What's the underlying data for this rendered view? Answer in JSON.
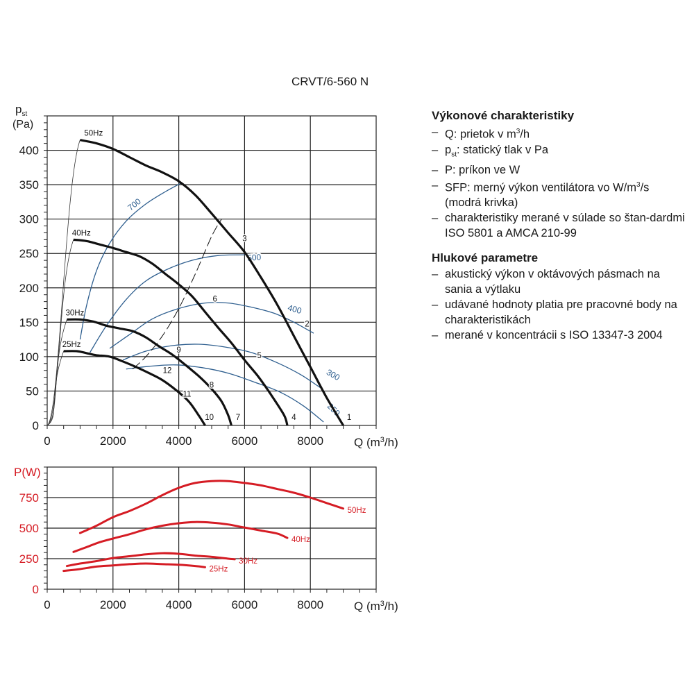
{
  "title": "CRVT/6-560 N",
  "description": {
    "sections": [
      {
        "heading": "Výkonové charakteristiky",
        "items": [
          "Q: prietok v m³/h",
          "pst: statický tlak v Pa",
          "P: príkon ve W",
          "SFP: merný výkon ventilátora vo W/m³/s (modrá krivka)",
          "charakteristiky merané v súlade so štandardmi ISO 5801 a AMCA 210-99"
        ]
      },
      {
        "heading": "Hlukové parametre",
        "items": [
          "akustický výkon v oktávových pásmach na sania a výtlaku",
          "udávané hodnoty platia pre pracovné body na charakteristikách",
          "merané v koncentrácii s ISO 13347-3 2004"
        ]
      }
    ]
  },
  "colors": {
    "fan_curve": "#111111",
    "sfp_curve": "#2f5f8f",
    "power_curve": "#d51c24",
    "grid": "#222222",
    "axis_red": "#d51c24"
  },
  "chart_data": [
    {
      "type": "line",
      "title": "",
      "xlabel": "Q (m³/h)",
      "ylabel": "pst (Pa)",
      "xlim": [
        0,
        10000
      ],
      "ylim": [
        0,
        450
      ],
      "xticks": [
        0,
        2000,
        4000,
        6000,
        8000
      ],
      "yticks": [
        0,
        50,
        100,
        150,
        200,
        250,
        300,
        350,
        400
      ],
      "grid": true,
      "series": [
        {
          "name": "50Hz",
          "kind": "fan",
          "points": [
            [
              1000,
              415
            ],
            [
              1500,
              410
            ],
            [
              2000,
              402
            ],
            [
              2500,
              390
            ],
            [
              3000,
              378
            ],
            [
              3500,
              368
            ],
            [
              4000,
              355
            ],
            [
              4500,
              335
            ],
            [
              5000,
              308
            ],
            [
              5500,
              280
            ],
            [
              6000,
              252
            ],
            [
              6500,
              215
            ],
            [
              7000,
              175
            ],
            [
              7500,
              130
            ],
            [
              8000,
              85
            ],
            [
              8500,
              40
            ],
            [
              9000,
              0
            ]
          ]
        },
        {
          "name": "40Hz",
          "kind": "fan",
          "points": [
            [
              800,
              270
            ],
            [
              1200,
              268
            ],
            [
              1600,
              263
            ],
            [
              2000,
              258
            ],
            [
              2400,
              252
            ],
            [
              2800,
              246
            ],
            [
              3200,
              235
            ],
            [
              3600,
              220
            ],
            [
              4000,
              205
            ],
            [
              4400,
              188
            ],
            [
              4800,
              165
            ],
            [
              5200,
              142
            ],
            [
              5600,
              120
            ],
            [
              6000,
              95
            ],
            [
              6400,
              72
            ],
            [
              6800,
              45
            ],
            [
              7200,
              15
            ],
            [
              7300,
              0
            ]
          ]
        },
        {
          "name": "30Hz",
          "kind": "fan",
          "points": [
            [
              600,
              154
            ],
            [
              1000,
              154
            ],
            [
              1400,
              151
            ],
            [
              1800,
              145
            ],
            [
              2200,
              141
            ],
            [
              2600,
              137
            ],
            [
              3000,
              128
            ],
            [
              3400,
              115
            ],
            [
              3800,
              103
            ],
            [
              4200,
              88
            ],
            [
              4600,
              72
            ],
            [
              5000,
              53
            ],
            [
              5300,
              35
            ],
            [
              5500,
              15
            ],
            [
              5600,
              0
            ]
          ]
        },
        {
          "name": "25Hz",
          "kind": "fan",
          "points": [
            [
              500,
              108
            ],
            [
              900,
              108
            ],
            [
              1200,
              105
            ],
            [
              1500,
              102
            ],
            [
              1900,
              100
            ],
            [
              2300,
              93
            ],
            [
              2700,
              85
            ],
            [
              3100,
              76
            ],
            [
              3500,
              66
            ],
            [
              3900,
              52
            ],
            [
              4300,
              35
            ],
            [
              4600,
              15
            ],
            [
              4800,
              0
            ]
          ]
        },
        {
          "name": "700",
          "kind": "sfp",
          "points": [
            [
              1000,
              125
            ],
            [
              1200,
              175
            ],
            [
              1500,
              225
            ],
            [
              1900,
              265
            ],
            [
              2400,
              297
            ],
            [
              3000,
              322
            ],
            [
              3600,
              340
            ],
            [
              4100,
              353
            ]
          ]
        },
        {
          "name": "500",
          "kind": "sfp",
          "points": [
            [
              1300,
              106
            ],
            [
              1800,
              145
            ],
            [
              2400,
              183
            ],
            [
              3000,
              210
            ],
            [
              3700,
              228
            ],
            [
              4400,
              240
            ],
            [
              5200,
              247
            ],
            [
              6000,
              248
            ]
          ]
        },
        {
          "name": "400",
          "kind": "sfp",
          "points": [
            [
              1900,
              112
            ],
            [
              2500,
              132
            ],
            [
              3200,
              155
            ],
            [
              4000,
              170
            ],
            [
              4800,
              178
            ],
            [
              5500,
              178
            ],
            [
              6200,
              172
            ],
            [
              6900,
              163
            ],
            [
              7500,
              150
            ],
            [
              8100,
              134
            ]
          ]
        },
        {
          "name": "300",
          "kind": "sfp",
          "points": [
            [
              2300,
              95
            ],
            [
              3000,
              108
            ],
            [
              3800,
              116
            ],
            [
              4600,
              118
            ],
            [
              5400,
              114
            ],
            [
              6200,
              106
            ],
            [
              7000,
              91
            ],
            [
              7700,
              74
            ],
            [
              8300,
              55
            ]
          ]
        },
        {
          "name": "250",
          "kind": "sfp",
          "points": [
            [
              2400,
              82
            ],
            [
              3100,
              86
            ],
            [
              3900,
              88
            ],
            [
              4700,
              84
            ],
            [
              5500,
              76
            ],
            [
              6300,
              63
            ],
            [
              7100,
              48
            ],
            [
              7800,
              28
            ],
            [
              8400,
              5
            ]
          ]
        }
      ],
      "system_lines": [
        {
          "points": [
            [
              2600,
              82
            ],
            [
              3000,
              100
            ],
            [
              3500,
              130
            ],
            [
              4000,
              170
            ],
            [
              4500,
              220
            ],
            [
              5000,
              275
            ],
            [
              5300,
              300
            ]
          ],
          "dashed": true
        }
      ],
      "point_labels": [
        {
          "text": "1",
          "at": [
            9180,
            8
          ]
        },
        {
          "text": "2",
          "at": [
            7900,
            144
          ]
        },
        {
          "text": "3",
          "at": [
            6000,
            268
          ]
        },
        {
          "text": "4",
          "at": [
            7500,
            8
          ]
        },
        {
          "text": "5",
          "at": [
            6450,
            98
          ]
        },
        {
          "text": "6",
          "at": [
            5100,
            180
          ]
        },
        {
          "text": "7",
          "at": [
            5800,
            8
          ]
        },
        {
          "text": "8",
          "at": [
            5000,
            55
          ]
        },
        {
          "text": "9",
          "at": [
            4000,
            106
          ]
        },
        {
          "text": "10",
          "at": [
            4930,
            8
          ]
        },
        {
          "text": "11",
          "at": [
            4250,
            42
          ]
        },
        {
          "text": "12",
          "at": [
            3650,
            76
          ]
        }
      ]
    },
    {
      "type": "line",
      "title": "",
      "xlabel": "Q (m³/h)",
      "ylabel": "P(W)",
      "xlim": [
        0,
        10000
      ],
      "ylim": [
        0,
        1000
      ],
      "xticks": [
        0,
        2000,
        4000,
        6000,
        8000
      ],
      "yticks": [
        0,
        250,
        500,
        750
      ],
      "grid": true,
      "series": [
        {
          "name": "50Hz",
          "points": [
            [
              1000,
              460
            ],
            [
              1500,
              520
            ],
            [
              2000,
              590
            ],
            [
              2500,
              640
            ],
            [
              3000,
              700
            ],
            [
              3500,
              770
            ],
            [
              4000,
              830
            ],
            [
              4500,
              870
            ],
            [
              5000,
              885
            ],
            [
              5500,
              885
            ],
            [
              6000,
              870
            ],
            [
              6500,
              850
            ],
            [
              7000,
              820
            ],
            [
              7500,
              790
            ],
            [
              8000,
              750
            ],
            [
              8500,
              705
            ],
            [
              9000,
              660
            ]
          ]
        },
        {
          "name": "40Hz",
          "points": [
            [
              800,
              305
            ],
            [
              1200,
              345
            ],
            [
              1600,
              385
            ],
            [
              2000,
              415
            ],
            [
              2500,
              450
            ],
            [
              3000,
              490
            ],
            [
              3500,
              520
            ],
            [
              4000,
              540
            ],
            [
              4500,
              550
            ],
            [
              5000,
              545
            ],
            [
              5500,
              530
            ],
            [
              6000,
              505
            ],
            [
              6500,
              480
            ],
            [
              7000,
              455
            ],
            [
              7300,
              420
            ]
          ]
        },
        {
          "name": "30Hz",
          "points": [
            [
              600,
              190
            ],
            [
              1000,
              210
            ],
            [
              1500,
              230
            ],
            [
              2000,
              255
            ],
            [
              2500,
              270
            ],
            [
              3000,
              285
            ],
            [
              3500,
              295
            ],
            [
              4000,
              290
            ],
            [
              4500,
              275
            ],
            [
              5000,
              265
            ],
            [
              5500,
              250
            ],
            [
              5700,
              245
            ]
          ]
        },
        {
          "name": "25Hz",
          "points": [
            [
              500,
              150
            ],
            [
              1000,
              165
            ],
            [
              1500,
              185
            ],
            [
              2000,
              195
            ],
            [
              2500,
              205
            ],
            [
              3000,
              210
            ],
            [
              3500,
              205
            ],
            [
              4000,
              200
            ],
            [
              4500,
              190
            ],
            [
              4800,
              180
            ]
          ]
        }
      ]
    }
  ]
}
